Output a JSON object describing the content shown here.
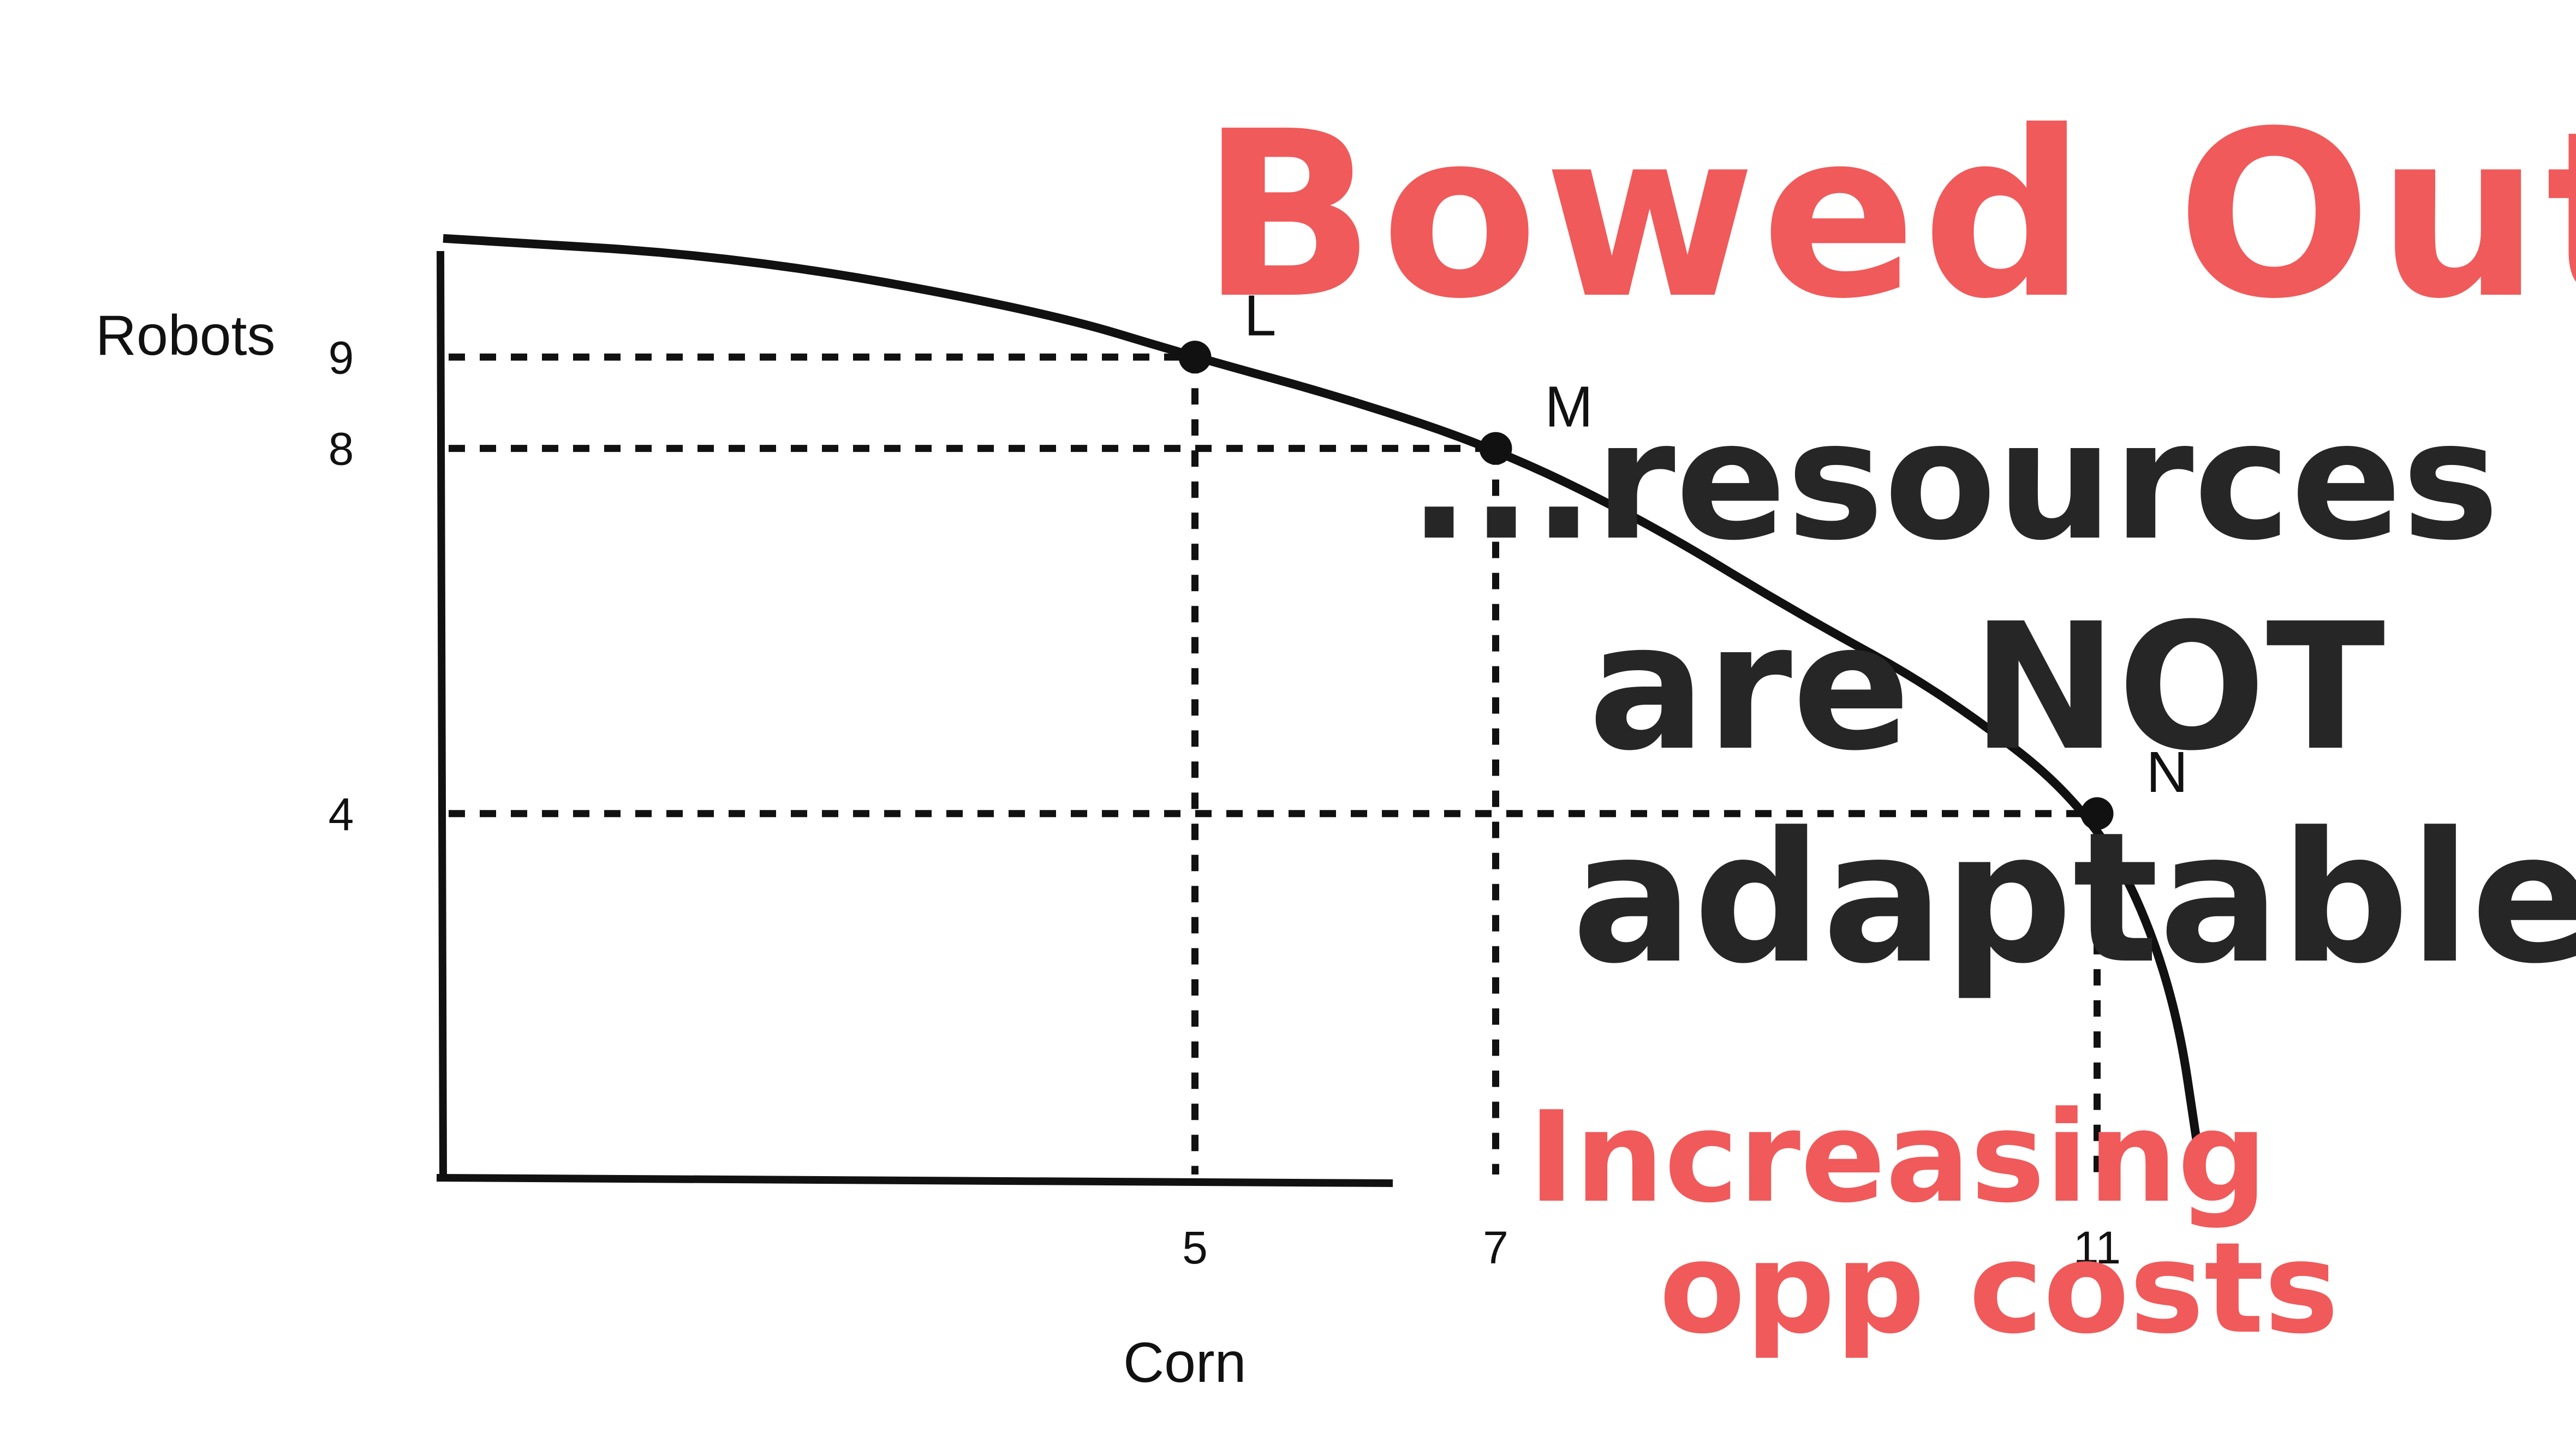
{
  "chart_data": {
    "type": "line",
    "xlabel": "Corn",
    "ylabel": "Robots",
    "xlim": [
      0,
      13
    ],
    "ylim": [
      0,
      11.5
    ],
    "x_ticks": [
      "5",
      "7",
      "11"
    ],
    "y_ticks": [
      "9",
      "8",
      "4"
    ],
    "curve": {
      "x": [
        0,
        2,
        4,
        5,
        6,
        7,
        8,
        9,
        10,
        11,
        11.5,
        11.7
      ],
      "y": [
        10.3,
        10.1,
        9.5,
        9,
        8.55,
        8,
        7.2,
        6.2,
        5.3,
        4,
        2.2,
        0
      ]
    },
    "points": [
      {
        "label": "L",
        "x": 5,
        "y": 9
      },
      {
        "label": "M",
        "x": 7,
        "y": 8
      },
      {
        "label": "N",
        "x": 11,
        "y": 4
      }
    ],
    "guides": "dashed",
    "grid": false,
    "legend": "none"
  },
  "annotations": {
    "title": "Bowed Out",
    "line1": "...resources",
    "line2": "are NOT",
    "line3": "adaptable",
    "line4": "Increasing",
    "line5": "opp costs"
  },
  "colors": {
    "ink": "#111111",
    "title_red": "#f05a5a",
    "handwriting_dark": "#262626"
  }
}
